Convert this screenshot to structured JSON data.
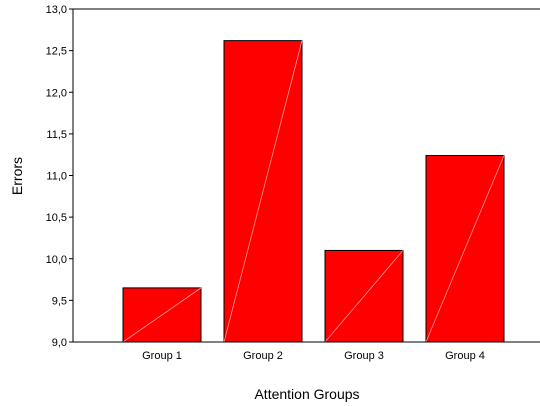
{
  "chart_data": {
    "type": "bar",
    "categories": [
      "Group 1",
      "Group 2",
      "Group 3",
      "Group 4"
    ],
    "values": [
      9.65,
      12.62,
      10.1,
      11.24
    ],
    "xlabel": "Attention Groups",
    "ylabel": "Errors",
    "ylim": [
      9.0,
      13.0
    ],
    "yticks": [
      "9,0",
      "9,5",
      "10,0",
      "10,5",
      "11,0",
      "11,5",
      "12,0",
      "12,5",
      "13,0"
    ],
    "grid": false,
    "legend": "none",
    "bar_color": "#ff0000",
    "edge_color": "#000000"
  }
}
